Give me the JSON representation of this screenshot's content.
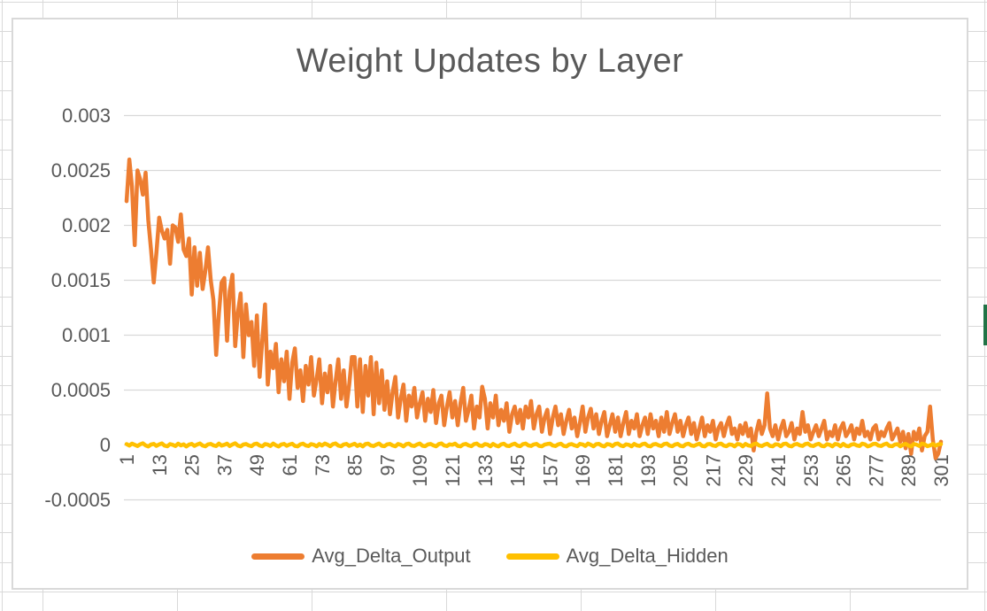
{
  "excel": {
    "selection_color": "#217346",
    "gridline_color": "#d9d9d9"
  },
  "chart_data": {
    "type": "line",
    "title": "Weight Updates by Layer",
    "xlabel": "",
    "ylabel": "",
    "x_range": [
      1,
      301
    ],
    "ylim": [
      -0.0005,
      0.003
    ],
    "grid": true,
    "legend_position": "bottom",
    "grid_color": "#d9d9d9",
    "label_color": "#595959",
    "x_ticks": [
      1,
      13,
      25,
      37,
      49,
      61,
      73,
      85,
      97,
      109,
      121,
      133,
      145,
      157,
      169,
      181,
      193,
      205,
      217,
      229,
      241,
      253,
      265,
      277,
      289,
      301
    ],
    "y_ticks": [
      {
        "label": "0.003",
        "value": 0.003
      },
      {
        "label": "0.0025",
        "value": 0.0025
      },
      {
        "label": "0.002",
        "value": 0.002
      },
      {
        "label": "0.0015",
        "value": 0.0015
      },
      {
        "label": "0.001",
        "value": 0.001
      },
      {
        "label": "0.0005",
        "value": 0.0005
      },
      {
        "label": "0",
        "value": 0
      },
      {
        "label": "-0.0005",
        "value": -0.0005
      }
    ],
    "series": [
      {
        "name": "Avg_Delta_Output",
        "color": "#ED7D31",
        "values": [
          0.00222,
          0.0026,
          0.00235,
          0.00182,
          0.0025,
          0.00242,
          0.00228,
          0.00248,
          0.00205,
          0.00178,
          0.00148,
          0.00175,
          0.00207,
          0.00195,
          0.00188,
          0.00196,
          0.00165,
          0.002,
          0.00198,
          0.00185,
          0.0021,
          0.00178,
          0.00172,
          0.00188,
          0.00137,
          0.0018,
          0.00145,
          0.00175,
          0.00142,
          0.00158,
          0.0018,
          0.0015,
          0.00132,
          0.00082,
          0.0012,
          0.00148,
          0.00152,
          0.00095,
          0.0014,
          0.00155,
          0.0009,
          0.0012,
          0.00138,
          0.0008,
          0.00128,
          0.001,
          0.00112,
          0.00072,
          0.00118,
          0.00062,
          0.00095,
          0.00128,
          0.00055,
          0.00085,
          0.0007,
          0.00092,
          0.00048,
          0.00078,
          0.00058,
          0.00085,
          0.00042,
          0.00075,
          0.00088,
          0.00052,
          0.00068,
          0.0004,
          0.00072,
          0.00055,
          0.0008,
          0.00045,
          0.0006,
          0.00078,
          0.00038,
          0.00065,
          0.00048,
          0.00072,
          0.00035,
          0.00058,
          0.00078,
          0.00042,
          0.00068,
          0.00035,
          0.00055,
          0.0008,
          0.0008,
          0.00035,
          0.00078,
          0.0003,
          0.00072,
          0.00045,
          0.0008,
          0.00028,
          0.00075,
          0.00038,
          0.00068,
          0.00032,
          0.00058,
          0.00028,
          0.00048,
          0.00062,
          0.00025,
          0.00042,
          0.00055,
          0.00022,
          0.00045,
          0.00035,
          0.00052,
          0.00025,
          0.00038,
          0.00048,
          0.00022,
          0.00042,
          0.0003,
          0.0005,
          0.0002,
          0.00038,
          0.00045,
          0.00018,
          0.00035,
          0.00048,
          0.00025,
          0.0004,
          0.00018,
          0.00038,
          0.00052,
          0.00022,
          0.00032,
          0.00045,
          0.00015,
          0.00035,
          0.00025,
          0.00053,
          0.00042,
          0.00015,
          0.00038,
          0.00025,
          0.00045,
          0.00018,
          0.00032,
          0.00022,
          0.00038,
          0.00012,
          0.00028,
          0.00035,
          0.0002,
          0.00032,
          0.00015,
          0.00035,
          0.00025,
          0.0004,
          0.00015,
          0.00028,
          0.00035,
          0.00012,
          0.00025,
          0.00032,
          0.0001,
          0.00025,
          0.00035,
          0.00018,
          0.00028,
          0.0001,
          0.00022,
          0.00032,
          0.00015,
          0.00025,
          8e-05,
          0.0002,
          0.00035,
          0.00012,
          0.00025,
          0.00033,
          0.00015,
          0.00028,
          0.0001,
          0.00022,
          0.0003,
          8e-05,
          0.00018,
          0.00028,
          0.00012,
          0.00025,
          8e-05,
          0.0002,
          0.0003,
          0.0001,
          0.00022,
          0.00015,
          0.00028,
          8e-05,
          0.00018,
          0.00025,
          0.0001,
          0.00028,
          0.00015,
          0.00022,
          8e-05,
          0.00025,
          0.00012,
          0.0003,
          0.0001,
          0.0002,
          0.00028,
          0.00012,
          0.00022,
          8e-05,
          0.00018,
          0.00025,
          0.0001,
          0.0002,
          5e-05,
          0.00015,
          0.00025,
          8e-05,
          0.00018,
          0.00012,
          0.00022,
          5e-05,
          0.00015,
          0.0002,
          8e-05,
          0.00018,
          0.00025,
          0.0001,
          0.00015,
          5e-05,
          0.00018,
          0.0001,
          0.0002,
          8e-05,
          0.00015,
          -5e-05,
          0.00012,
          0.00022,
          0.0001,
          0.00018,
          0.00047,
          0.00015,
          8e-05,
          0.00018,
          5e-05,
          0.00015,
          0.00022,
          8e-05,
          0.00012,
          0.0002,
          5e-05,
          0.00015,
          0.0001,
          0.0003,
          0.00012,
          0.00018,
          5e-05,
          0.00012,
          0.00018,
          8e-05,
          0.00015,
          0.00022,
          5e-05,
          0.00012,
          8e-05,
          0.00018,
          5e-05,
          0.00015,
          0.0002,
          8e-05,
          0.00012,
          0.00018,
          5e-05,
          0.00015,
          0.0001,
          0.00022,
          8e-05,
          0.00012,
          5e-05,
          0.00015,
          0.00018,
          5e-05,
          0.00012,
          8e-05,
          0.00015,
          0.0002,
          5e-05,
          0.0001,
          0.00015,
          3e-05,
          0.00012,
          -3e-05,
          0.0001,
          -8e-05,
          0.00012,
          5e-05,
          0.00015,
          -5e-05,
          8e-05,
          0.00012,
          0.00035,
          5e-05,
          -0.00012,
          -8e-05,
          3e-05
        ]
      },
      {
        "name": "Avg_Delta_Hidden",
        "color": "#FFC000",
        "values": [
          8e-06,
          -6e-06,
          1.2e-05,
          2e-06,
          -1e-05,
          6e-06,
          1.5e-05,
          -4e-06,
          -1.4e-05,
          4e-06,
          1e-05,
          -8e-06,
          5e-06,
          1.4e-05,
          -6e-06,
          -1.2e-05,
          8e-06,
          2e-06,
          -1e-05,
          1.2e-05,
          -4e-06,
          6e-06,
          -1.4e-05,
          3e-06,
          1e-05,
          -8e-06,
          4e-06,
          1.4e-05,
          -5e-06,
          -1.2e-05,
          6e-06,
          1e-05,
          -3e-06,
          -1e-05,
          1.2e-05,
          -6e-06,
          2e-06,
          1.2e-05,
          -1e-05,
          5e-06,
          1.5e-05,
          -6e-06,
          -1.3e-05,
          4e-06,
          9e-06,
          -4e-06,
          -1.1e-05,
          7e-06,
          1.2e-05,
          -5e-06,
          -1.2e-05,
          8e-06,
          3e-06,
          -9e-06,
          1.3e-05,
          -3e-06,
          -1.4e-05,
          5e-06,
          1e-05,
          -7e-06,
          4e-06,
          1.1e-05,
          -8e-06,
          -1.3e-05,
          6e-06,
          1.2e-05,
          -4e-06,
          -1e-05,
          8e-06,
          2e-06,
          -1.2e-05,
          9e-06,
          -5e-06,
          1.3e-05,
          3e-06,
          -1.1e-05,
          7e-06,
          1.4e-05,
          -6e-06,
          -1.2e-05,
          5e-06,
          1e-05,
          -8e-06,
          2e-06,
          1.1e-05,
          -9e-06,
          4e-06,
          -1.3e-05,
          8e-06,
          1.2e-05,
          -5e-06,
          -1e-05,
          3e-06,
          1.3e-05,
          -7e-06,
          -1.1e-05,
          6e-06,
          1e-05,
          -4e-06,
          -1.2e-05,
          9e-06,
          2e-06,
          -1.3e-05,
          7e-06,
          1.2e-05,
          -6e-06,
          -9e-06,
          4e-06,
          1.3e-05,
          -7e-06,
          -1.1e-05,
          5e-06,
          9e-06,
          -3e-06,
          -1.2e-05,
          8e-06,
          1.4e-05,
          -5e-06,
          -1e-05,
          6e-06,
          2e-06,
          1.2e-05,
          -8e-06,
          -1.3e-05,
          5e-06,
          1e-05,
          -4e-06,
          -1.1e-05,
          7e-06,
          1.3e-05,
          -6e-06,
          -9e-06,
          8e-06,
          3e-06,
          -1.2e-05,
          1e-05,
          -5e-06,
          -1.3e-05,
          6e-06,
          1.1e-05,
          -7e-06,
          -1e-05,
          4e-06,
          1.2e-05,
          -6e-06,
          -1.1e-05,
          7e-06,
          1.3e-05,
          -4e-06,
          -9e-06,
          5e-06,
          1e-05,
          -8e-06,
          -1.2e-05,
          3e-06,
          9e-06,
          1.2e-05,
          -5e-06,
          -1e-05,
          6e-06,
          1.1e-05,
          -7e-06,
          -1.3e-05,
          4e-06,
          8e-06,
          -3e-06,
          -1.1e-05,
          1e-05,
          5e-06,
          -9e-06,
          1.3e-05,
          2e-06,
          -1.2e-05,
          7e-06,
          1e-05,
          -6e-06,
          -1.3e-05,
          8e-06,
          4e-06,
          -1e-05,
          9e-06,
          1.3e-05,
          -5e-06,
          -1.1e-05,
          6e-06,
          2e-06,
          -1.2e-05,
          1e-05,
          -4e-06,
          -9e-06,
          7e-06,
          1.2e-05,
          -8e-06,
          -1.3e-05,
          5e-06,
          9e-06,
          -3e-06,
          -1e-05,
          8e-06,
          1.3e-05,
          -6e-06,
          -1.1e-05,
          4e-06,
          1e-05,
          -7e-06,
          -1.2e-05,
          6e-06,
          1.1e-05,
          -4e-06,
          -9e-06,
          3e-06,
          1.2e-05,
          -8e-06,
          -1.3e-05,
          7e-06,
          9e-06,
          -5e-06,
          -1e-05,
          8e-06,
          1.2e-05,
          -6e-06,
          -1.1e-05,
          5e-06,
          2e-06,
          -1.3e-05,
          9e-06,
          6e-06,
          -1.2e-05,
          1e-05,
          -4e-06,
          -9e-06,
          7e-06,
          1.3e-05,
          -5e-06,
          -1e-05,
          3e-06,
          1.1e-05,
          -8e-06,
          -1.2e-05,
          6e-06,
          4e-06,
          -1.1e-05,
          9e-06,
          1.2e-05,
          -7e-06,
          -1.3e-05,
          5e-06,
          1e-05,
          -3e-06,
          -9e-06,
          8e-06,
          1.3e-05,
          -6e-06,
          -1e-05,
          4e-06,
          1.1e-05,
          -8e-06,
          -1.2e-05,
          7e-06,
          2e-06,
          -1.3e-05,
          9e-06,
          5e-06,
          -1.1e-05,
          1e-05,
          -7e-06,
          -1.2e-05,
          3e-06,
          8e-06,
          -4e-06,
          -1e-05,
          1.2e-05,
          6e-06,
          -1.3e-05,
          -5e-06,
          9e-06,
          1.1e-05,
          -6e-06,
          -9e-06,
          5e-06,
          1.3e-05,
          -8e-06,
          -1.1e-05,
          4e-06,
          7e-06,
          -1.2e-05,
          2e-06,
          1e-05,
          -5e-06,
          -1.3e-05,
          8e-06,
          3e-06,
          -9e-06,
          1.2e-05,
          6e-06,
          -1.1e-05,
          -4e-06,
          1e-05,
          -7e-06,
          5e-06,
          8e-06
        ]
      }
    ]
  }
}
